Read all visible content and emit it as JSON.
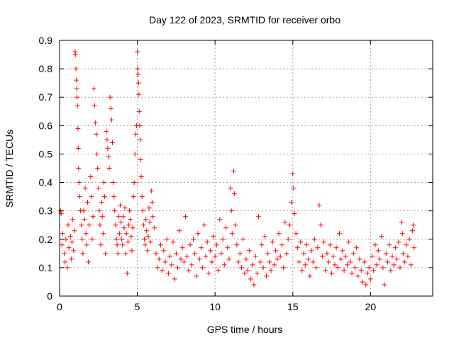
{
  "chart_data": {
    "type": "scatter",
    "title": "Day 122 of 2023, SRMTID for receiver orbo",
    "xlabel": "GPS time / hours",
    "ylabel": "SRMTID / TECUs",
    "xlim": [
      0,
      24
    ],
    "ylim": [
      0,
      0.9
    ],
    "xticks": [
      0,
      5,
      10,
      15,
      20
    ],
    "yticks": [
      0,
      0.1,
      0.2,
      0.3,
      0.4,
      0.5,
      0.6,
      0.7,
      0.8,
      0.9
    ],
    "xtick_labels": [
      "0",
      "5",
      "10",
      "15",
      "20"
    ],
    "ytick_labels": [
      "0",
      "0.1",
      "0.2",
      "0.3",
      "0.4",
      "0.5",
      "0.6",
      "0.7",
      "0.8",
      "0.9"
    ],
    "grid": true,
    "marker": "+",
    "series": [
      {
        "name": "SRMTID",
        "color": "#ff0000",
        "points": [
          [
            0.05,
            0.3
          ],
          [
            0.1,
            0.29
          ],
          [
            0.15,
            0.18
          ],
          [
            0.2,
            0.22
          ],
          [
            0.3,
            0.15
          ],
          [
            0.35,
            0.12
          ],
          [
            0.4,
            0.2
          ],
          [
            0.5,
            0.1
          ],
          [
            0.55,
            0.25
          ],
          [
            0.6,
            0.17
          ],
          [
            0.7,
            0.21
          ],
          [
            0.75,
            0.13
          ],
          [
            0.8,
            0.19
          ],
          [
            0.85,
            0.27
          ],
          [
            0.9,
            0.16
          ],
          [
            0.95,
            0.23
          ],
          [
            1.0,
            0.86
          ],
          [
            1.02,
            0.85
          ],
          [
            1.05,
            0.8
          ],
          [
            1.08,
            0.76
          ],
          [
            1.1,
            0.73
          ],
          [
            1.12,
            0.7
          ],
          [
            1.15,
            0.67
          ],
          [
            1.18,
            0.59
          ],
          [
            1.2,
            0.52
          ],
          [
            1.22,
            0.45
          ],
          [
            1.25,
            0.4
          ],
          [
            1.3,
            0.35
          ],
          [
            1.35,
            0.3
          ],
          [
            1.4,
            0.25
          ],
          [
            1.45,
            0.2
          ],
          [
            1.5,
            0.15
          ],
          [
            1.55,
            0.3
          ],
          [
            1.6,
            0.27
          ],
          [
            1.65,
            0.38
          ],
          [
            1.7,
            0.22
          ],
          [
            1.75,
            0.18
          ],
          [
            1.8,
            0.33
          ],
          [
            1.85,
            0.12
          ],
          [
            1.9,
            0.25
          ],
          [
            2.0,
            0.42
          ],
          [
            2.05,
            0.35
          ],
          [
            2.1,
            0.2
          ],
          [
            2.15,
            0.28
          ],
          [
            2.2,
            0.73
          ],
          [
            2.25,
            0.67
          ],
          [
            2.3,
            0.61
          ],
          [
            2.35,
            0.57
          ],
          [
            2.4,
            0.5
          ],
          [
            2.45,
            0.45
          ],
          [
            2.5,
            0.38
          ],
          [
            2.55,
            0.3
          ],
          [
            2.6,
            0.25
          ],
          [
            2.65,
            0.18
          ],
          [
            2.7,
            0.33
          ],
          [
            2.75,
            0.28
          ],
          [
            2.8,
            0.22
          ],
          [
            2.85,
            0.4
          ],
          [
            2.9,
            0.35
          ],
          [
            2.95,
            0.15
          ],
          [
            3.0,
            0.58
          ],
          [
            3.05,
            0.55
          ],
          [
            3.1,
            0.52
          ],
          [
            3.15,
            0.49
          ],
          [
            3.2,
            0.45
          ],
          [
            3.25,
            0.7
          ],
          [
            3.3,
            0.66
          ],
          [
            3.35,
            0.62
          ],
          [
            3.4,
            0.54
          ],
          [
            3.45,
            0.4
          ],
          [
            3.5,
            0.35
          ],
          [
            3.55,
            0.3
          ],
          [
            3.6,
            0.25
          ],
          [
            3.65,
            0.2
          ],
          [
            3.7,
            0.18
          ],
          [
            3.75,
            0.15
          ],
          [
            3.8,
            0.28
          ],
          [
            3.85,
            0.22
          ],
          [
            3.9,
            0.32
          ],
          [
            3.95,
            0.26
          ],
          [
            4.0,
            0.2
          ],
          [
            4.05,
            0.18
          ],
          [
            4.1,
            0.28
          ],
          [
            4.15,
            0.24
          ],
          [
            4.2,
            0.31
          ],
          [
            4.25,
            0.15
          ],
          [
            4.3,
            0.22
          ],
          [
            4.35,
            0.08
          ],
          [
            4.4,
            0.19
          ],
          [
            4.45,
            0.25
          ],
          [
            4.5,
            0.3
          ],
          [
            4.55,
            0.27
          ],
          [
            4.6,
            0.21
          ],
          [
            4.65,
            0.16
          ],
          [
            4.7,
            0.24
          ],
          [
            4.75,
            0.35
          ],
          [
            4.8,
            0.4
          ],
          [
            4.85,
            0.5
          ],
          [
            4.9,
            0.57
          ],
          [
            4.95,
            0.6
          ],
          [
            5.0,
            0.86
          ],
          [
            5.02,
            0.8
          ],
          [
            5.05,
            0.78
          ],
          [
            5.08,
            0.75
          ],
          [
            5.1,
            0.71
          ],
          [
            5.12,
            0.65
          ],
          [
            5.15,
            0.6
          ],
          [
            5.18,
            0.55
          ],
          [
            5.2,
            0.48
          ],
          [
            5.25,
            0.42
          ],
          [
            5.3,
            0.35
          ],
          [
            5.35,
            0.3
          ],
          [
            5.4,
            0.25
          ],
          [
            5.45,
            0.2
          ],
          [
            5.5,
            0.18
          ],
          [
            5.55,
            0.27
          ],
          [
            5.6,
            0.23
          ],
          [
            5.65,
            0.16
          ],
          [
            5.7,
            0.21
          ],
          [
            5.75,
            0.31
          ],
          [
            5.8,
            0.26
          ],
          [
            5.85,
            0.19
          ],
          [
            5.9,
            0.37
          ],
          [
            5.95,
            0.33
          ],
          [
            6.0,
            0.28
          ],
          [
            6.1,
            0.24
          ],
          [
            6.2,
            0.15
          ],
          [
            6.3,
            0.1
          ],
          [
            6.4,
            0.13
          ],
          [
            6.5,
            0.18
          ],
          [
            6.6,
            0.09
          ],
          [
            6.7,
            0.16
          ],
          [
            6.8,
            0.12
          ],
          [
            6.9,
            0.2
          ],
          [
            7.0,
            0.08
          ],
          [
            7.1,
            0.14
          ],
          [
            7.2,
            0.11
          ],
          [
            7.3,
            0.19
          ],
          [
            7.4,
            0.06
          ],
          [
            7.5,
            0.15
          ],
          [
            7.6,
            0.1
          ],
          [
            7.7,
            0.23
          ],
          [
            7.8,
            0.13
          ],
          [
            7.9,
            0.17
          ],
          [
            8.0,
            0.12
          ],
          [
            8.1,
            0.28
          ],
          [
            8.2,
            0.14
          ],
          [
            8.3,
            0.09
          ],
          [
            8.4,
            0.18
          ],
          [
            8.5,
            0.11
          ],
          [
            8.6,
            0.2
          ],
          [
            8.7,
            0.15
          ],
          [
            8.8,
            0.07
          ],
          [
            8.9,
            0.22
          ],
          [
            9.0,
            0.13
          ],
          [
            9.1,
            0.17
          ],
          [
            9.2,
            0.1
          ],
          [
            9.3,
            0.25
          ],
          [
            9.4,
            0.14
          ],
          [
            9.5,
            0.19
          ],
          [
            9.6,
            0.08
          ],
          [
            9.7,
            0.16
          ],
          [
            9.8,
            0.12
          ],
          [
            9.9,
            0.21
          ],
          [
            10.0,
            0.14
          ],
          [
            10.1,
            0.18
          ],
          [
            10.2,
            0.09
          ],
          [
            10.3,
            0.27
          ],
          [
            10.4,
            0.15
          ],
          [
            10.5,
            0.2
          ],
          [
            10.6,
            0.11
          ],
          [
            10.7,
            0.24
          ],
          [
            10.8,
            0.17
          ],
          [
            10.9,
            0.13
          ],
          [
            11.0,
            0.38
          ],
          [
            11.05,
            0.3
          ],
          [
            11.1,
            0.22
          ],
          [
            11.2,
            0.44
          ],
          [
            11.25,
            0.36
          ],
          [
            11.3,
            0.25
          ],
          [
            11.4,
            0.18
          ],
          [
            11.5,
            0.12
          ],
          [
            11.6,
            0.15
          ],
          [
            11.7,
            0.1
          ],
          [
            11.8,
            0.2
          ],
          [
            11.9,
            0.08
          ],
          [
            12.0,
            0.13
          ],
          [
            12.1,
            0.09
          ],
          [
            12.2,
            0.16
          ],
          [
            12.3,
            0.06
          ],
          [
            12.4,
            0.11
          ],
          [
            12.5,
            0.04
          ],
          [
            12.6,
            0.14
          ],
          [
            12.7,
            0.08
          ],
          [
            12.8,
            0.28
          ],
          [
            12.9,
            0.12
          ],
          [
            13.0,
            0.18
          ],
          [
            13.1,
            0.1
          ],
          [
            13.2,
            0.21
          ],
          [
            13.3,
            0.07
          ],
          [
            13.4,
            0.15
          ],
          [
            13.5,
            0.12
          ],
          [
            13.6,
            0.09
          ],
          [
            13.7,
            0.19
          ],
          [
            13.8,
            0.11
          ],
          [
            13.9,
            0.16
          ],
          [
            14.0,
            0.13
          ],
          [
            14.1,
            0.22
          ],
          [
            14.2,
            0.14
          ],
          [
            14.3,
            0.18
          ],
          [
            14.4,
            0.1
          ],
          [
            14.5,
            0.26
          ],
          [
            14.6,
            0.15
          ],
          [
            14.7,
            0.2
          ],
          [
            14.8,
            0.25
          ],
          [
            14.9,
            0.33
          ],
          [
            15.0,
            0.43
          ],
          [
            15.05,
            0.38
          ],
          [
            15.1,
            0.29
          ],
          [
            15.2,
            0.22
          ],
          [
            15.3,
            0.17
          ],
          [
            15.4,
            0.12
          ],
          [
            15.5,
            0.19
          ],
          [
            15.6,
            0.09
          ],
          [
            15.7,
            0.15
          ],
          [
            15.8,
            0.11
          ],
          [
            15.9,
            0.18
          ],
          [
            16.0,
            0.13
          ],
          [
            16.1,
            0.07
          ],
          [
            16.2,
            0.16
          ],
          [
            16.3,
            0.12
          ],
          [
            16.4,
            0.2
          ],
          [
            16.5,
            0.1
          ],
          [
            16.6,
            0.17
          ],
          [
            16.7,
            0.32
          ],
          [
            16.8,
            0.25
          ],
          [
            16.9,
            0.14
          ],
          [
            17.0,
            0.19
          ],
          [
            17.1,
            0.09
          ],
          [
            17.2,
            0.15
          ],
          [
            17.3,
            0.12
          ],
          [
            17.4,
            0.18
          ],
          [
            17.5,
            0.08
          ],
          [
            17.6,
            0.14
          ],
          [
            17.7,
            0.11
          ],
          [
            17.8,
            0.17
          ],
          [
            17.9,
            0.1
          ],
          [
            18.0,
            0.22
          ],
          [
            18.1,
            0.13
          ],
          [
            18.2,
            0.16
          ],
          [
            18.3,
            0.09
          ],
          [
            18.4,
            0.14
          ],
          [
            18.5,
            0.11
          ],
          [
            18.6,
            0.19
          ],
          [
            18.7,
            0.12
          ],
          [
            18.8,
            0.08
          ],
          [
            18.9,
            0.15
          ],
          [
            19.0,
            0.1
          ],
          [
            19.1,
            0.17
          ],
          [
            19.2,
            0.07
          ],
          [
            19.3,
            0.13
          ],
          [
            19.4,
            0.09
          ],
          [
            19.5,
            0.05
          ],
          [
            19.6,
            0.12
          ],
          [
            19.7,
            0.04
          ],
          [
            19.8,
            0.08
          ],
          [
            19.9,
            0.1
          ],
          [
            20.0,
            0.06
          ],
          [
            20.1,
            0.14
          ],
          [
            20.2,
            0.09
          ],
          [
            20.3,
            0.18
          ],
          [
            20.4,
            0.11
          ],
          [
            20.5,
            0.16
          ],
          [
            20.6,
            0.13
          ],
          [
            20.7,
            0.21
          ],
          [
            20.8,
            0.1
          ],
          [
            20.9,
            0.04
          ],
          [
            21.0,
            0.15
          ],
          [
            21.1,
            0.12
          ],
          [
            21.2,
            0.18
          ],
          [
            21.3,
            0.09
          ],
          [
            21.4,
            0.14
          ],
          [
            21.5,
            0.11
          ],
          [
            21.6,
            0.17
          ],
          [
            21.7,
            0.13
          ],
          [
            21.8,
            0.19
          ],
          [
            21.9,
            0.1
          ],
          [
            22.0,
            0.26
          ],
          [
            22.05,
            0.22
          ],
          [
            22.1,
            0.15
          ],
          [
            22.2,
            0.12
          ],
          [
            22.3,
            0.18
          ],
          [
            22.4,
            0.14
          ],
          [
            22.5,
            0.2
          ],
          [
            22.6,
            0.11
          ],
          [
            22.7,
            0.23
          ],
          [
            22.75,
            0.25
          ],
          [
            22.8,
            0.17
          ]
        ]
      }
    ]
  }
}
